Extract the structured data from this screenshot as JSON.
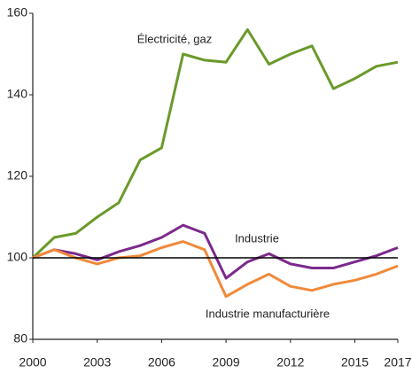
{
  "chart_data": {
    "type": "line",
    "x": [
      2000,
      2001,
      2002,
      2003,
      2004,
      2005,
      2006,
      2007,
      2008,
      2009,
      2010,
      2011,
      2012,
      2013,
      2014,
      2015,
      2016,
      2017
    ],
    "series": [
      {
        "name": "Électricité, gaz",
        "color": "#6a9a2a",
        "values": [
          100,
          105,
          106,
          110,
          113.5,
          124,
          127,
          150,
          148.5,
          148,
          156,
          147.5,
          150,
          152,
          141.5,
          144,
          147,
          148
        ]
      },
      {
        "name": "Industrie",
        "color": "#7b2a8c",
        "values": [
          100,
          102,
          101,
          99.5,
          101.5,
          103,
          105,
          108,
          106,
          95,
          99,
          101,
          98.5,
          97.5,
          97.5,
          99,
          100.5,
          102.5
        ]
      },
      {
        "name": "Industrie manufacturière",
        "color": "#f08a3a",
        "values": [
          100,
          102,
          100,
          98.5,
          100,
          100.5,
          102.5,
          104,
          102,
          90.5,
          93.5,
          96,
          93,
          92,
          93.5,
          94.5,
          96,
          98
        ]
      }
    ],
    "xlim": [
      2000,
      2017
    ],
    "xticks": [
      2000,
      2003,
      2006,
      2009,
      2012,
      2015,
      2017
    ],
    "ylim": [
      80,
      160
    ],
    "yticks": [
      80,
      100,
      120,
      140,
      160
    ],
    "reference_line": 100
  }
}
